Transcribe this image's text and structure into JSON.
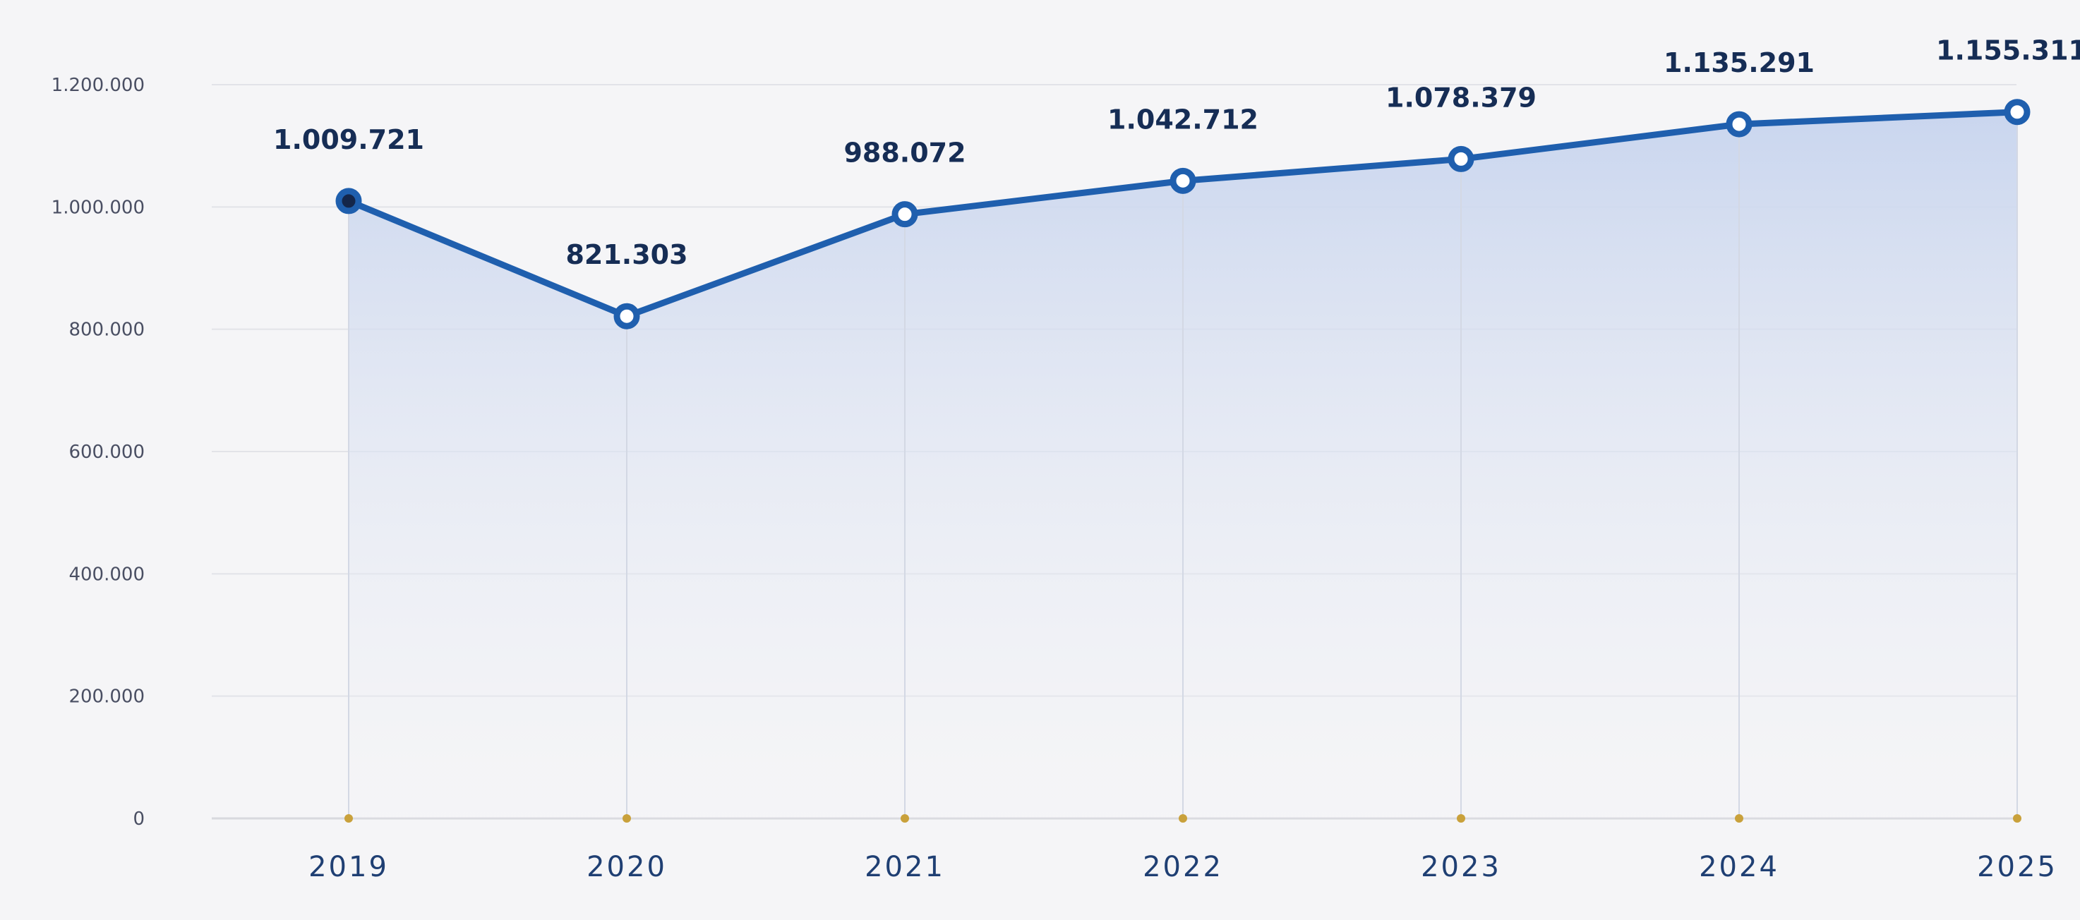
{
  "chart_data": {
    "type": "area",
    "title": "",
    "xlabel": "",
    "ylabel": "",
    "categories": [
      "2019",
      "2020",
      "2021",
      "2022",
      "2023",
      "2024",
      "2025"
    ],
    "series": [
      {
        "values": [
          1009721,
          821303,
          988072,
          1042712,
          1078379,
          1135291,
          1155311
        ],
        "labels": [
          "1.009.721",
          "821.303",
          "988.072",
          "1.042.712",
          "1.078.379",
          "1.135.291",
          "1.155.311"
        ]
      }
    ],
    "ylim": [
      0,
      1200000
    ],
    "yticks": [
      0,
      200000,
      400000,
      600000,
      800000,
      1000000,
      1200000
    ],
    "ytick_labels": [
      "0",
      "200.000",
      "400.000",
      "600.000",
      "800.000",
      "1.000.000",
      "1.200.000"
    ],
    "grid": true,
    "legend": "none",
    "colors": {
      "line": "#1f5fae",
      "marker_fill": "#ffffff",
      "first_marker_fill": "#14264a",
      "area_top": "#c7d4ee",
      "area_bottom": "#f3f3f6",
      "baseline_dot": "#c9a13b",
      "grid": "#e2e3e8",
      "background": "#f5f5f7",
      "data_label": "#162d55",
      "x_tick_label": "#1f3f73",
      "y_tick_label": "#4a4f63"
    }
  }
}
